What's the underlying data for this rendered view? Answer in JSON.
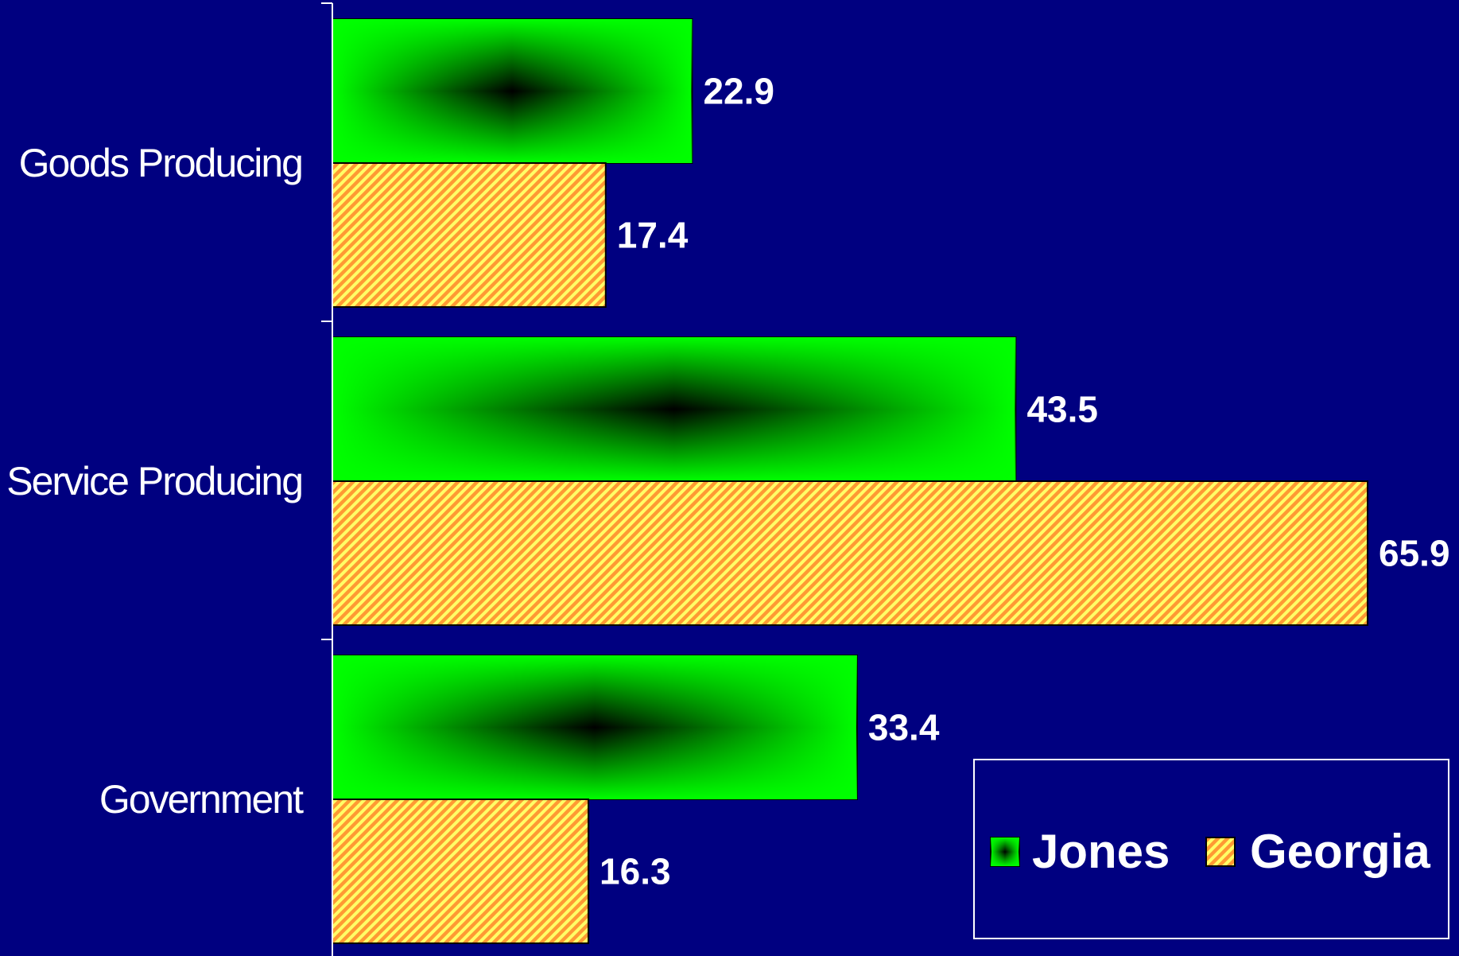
{
  "chart_data": {
    "type": "bar",
    "orientation": "horizontal",
    "categories": [
      "Goods Producing",
      "Service Producing",
      "Government"
    ],
    "series": [
      {
        "name": "Jones",
        "values": [
          22.9,
          43.5,
          33.4
        ],
        "color": "#00ff00"
      },
      {
        "name": "Georgia",
        "values": [
          17.4,
          65.9,
          16.3
        ],
        "color": "#ff9933",
        "hatch_color": "#ffff66"
      }
    ],
    "xlim": [
      0,
      68
    ],
    "grid": false,
    "legend_position": "bottom-right",
    "background": "#000080"
  }
}
